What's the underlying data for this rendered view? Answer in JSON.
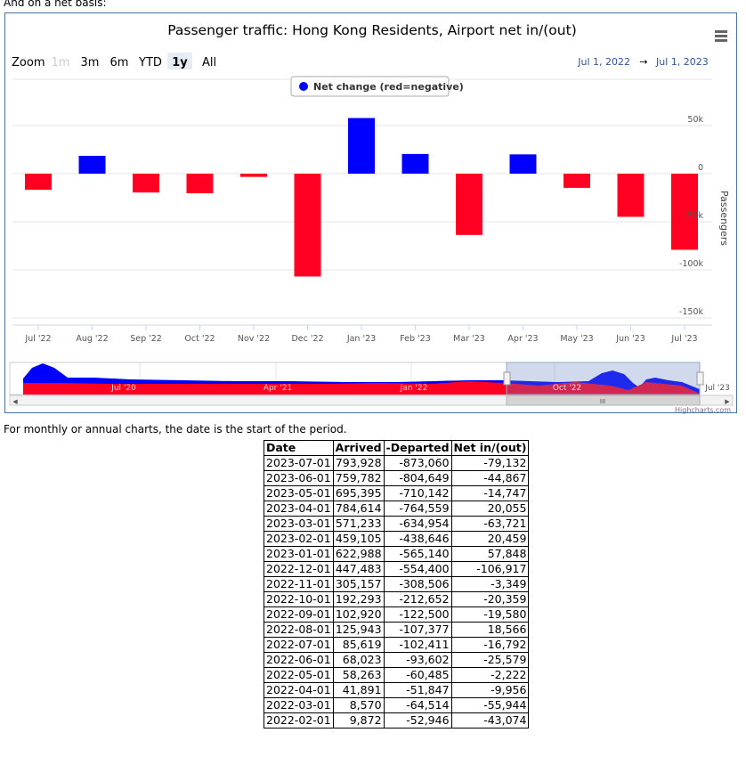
{
  "intro_text": "And on a net basis:",
  "caption": "For monthly or annual charts, the date is the start of the period.",
  "range_selector": {
    "zoom_label": "Zoom",
    "buttons": [
      "1m",
      "3m",
      "6m",
      "YTD",
      "1y",
      "All"
    ],
    "selected": "1y",
    "disabled": [
      "1m"
    ],
    "from": "Jul 1, 2022",
    "arrow": "→",
    "to": "Jul 1, 2023"
  },
  "credits": "Highcharts.com",
  "navigator": {
    "labels": [
      "Jul '20",
      "Apr '21",
      "Jan '22",
      "Oct '22",
      "Jul '23"
    ]
  },
  "chart_data": {
    "type": "bar",
    "title": "Passenger traffic: Hong Kong Residents, Airport net in/(out)",
    "ylabel": "Passengers",
    "legend": {
      "label": "Net change (red=negative)",
      "placement": "top-center"
    },
    "categories": [
      "Jul '22",
      "Aug '22",
      "Sep '22",
      "Oct '22",
      "Nov '22",
      "Dec '22",
      "Jan '23",
      "Feb '23",
      "Mar '23",
      "Apr '23",
      "May '23",
      "Jun '23",
      "Jul '23"
    ],
    "values": [
      -16792,
      18566,
      -19580,
      -20359,
      -3349,
      -106917,
      57848,
      20459,
      -63721,
      20055,
      -14747,
      -44867,
      -79132
    ],
    "ylim": [
      -150000,
      75000
    ],
    "yticks": [
      50000,
      0,
      -50000,
      -100000,
      -150000
    ],
    "ytick_labels": [
      "50k",
      "0",
      "-50k",
      "-100k",
      "-150k"
    ],
    "grid": true,
    "colors": {
      "positive": "#0000ff",
      "negative": "#ff0022"
    }
  },
  "table": {
    "headers": [
      "Date",
      "Arrived",
      "-Departed",
      "Net in/(out)"
    ],
    "rows": [
      [
        "2023-07-01",
        "793,928",
        "-873,060",
        "-79,132"
      ],
      [
        "2023-06-01",
        "759,782",
        "-804,649",
        "-44,867"
      ],
      [
        "2023-05-01",
        "695,395",
        "-710,142",
        "-14,747"
      ],
      [
        "2023-04-01",
        "784,614",
        "-764,559",
        "20,055"
      ],
      [
        "2023-03-01",
        "571,233",
        "-634,954",
        "-63,721"
      ],
      [
        "2023-02-01",
        "459,105",
        "-438,646",
        "20,459"
      ],
      [
        "2023-01-01",
        "622,988",
        "-565,140",
        "57,848"
      ],
      [
        "2022-12-01",
        "447,483",
        "-554,400",
        "-106,917"
      ],
      [
        "2022-11-01",
        "305,157",
        "-308,506",
        "-3,349"
      ],
      [
        "2022-10-01",
        "192,293",
        "-212,652",
        "-20,359"
      ],
      [
        "2022-09-01",
        "102,920",
        "-122,500",
        "-19,580"
      ],
      [
        "2022-08-01",
        "125,943",
        "-107,377",
        "18,566"
      ],
      [
        "2022-07-01",
        "85,619",
        "-102,411",
        "-16,792"
      ],
      [
        "2022-06-01",
        "68,023",
        "-93,602",
        "-25,579"
      ],
      [
        "2022-05-01",
        "58,263",
        "-60,485",
        "-2,222"
      ],
      [
        "2022-04-01",
        "41,891",
        "-51,847",
        "-9,956"
      ],
      [
        "2022-03-01",
        "8,570",
        "-64,514",
        "-55,944"
      ],
      [
        "2022-02-01",
        "9,872",
        "-52,946",
        "-43,074"
      ]
    ]
  }
}
